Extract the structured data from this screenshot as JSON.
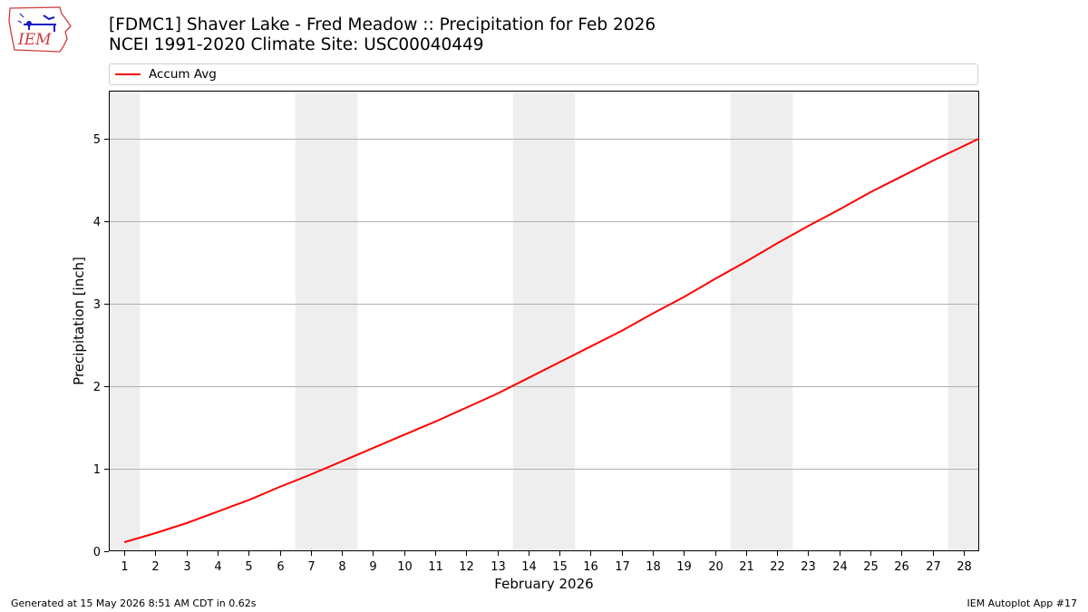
{
  "header": {
    "title_line1": "[FDMC1] Shaver Lake - Fred Meadow :: Precipitation for Feb 2026",
    "title_line2": "NCEI 1991-2020 Climate Site: USC00040449"
  },
  "logo": {
    "text": "IEM",
    "icon": "iem-iowa-logo"
  },
  "footer": {
    "generated": "Generated at 15 May 2026 8:51 AM CDT in 0.62s",
    "app": "IEM Autoplot App #17"
  },
  "colors": {
    "series": "#ff0000",
    "weekend_band": "#eeeeee",
    "grid": "#b0b0b0"
  },
  "chart_data": {
    "type": "line",
    "xlabel": "February 2026",
    "ylabel": "Precipitation [inch]",
    "xlim": [
      0.5,
      28.5
    ],
    "ylim": [
      0,
      5.58
    ],
    "x_ticks": [
      1,
      2,
      3,
      4,
      5,
      6,
      7,
      8,
      9,
      10,
      11,
      12,
      13,
      14,
      15,
      16,
      17,
      18,
      19,
      20,
      21,
      22,
      23,
      24,
      25,
      26,
      27,
      28
    ],
    "y_ticks": [
      0,
      1,
      2,
      3,
      4,
      5
    ],
    "grid": "horizontal",
    "legend_position": "top",
    "weekend_shading": [
      [
        0.5,
        1.5
      ],
      [
        6.5,
        8.5
      ],
      [
        13.5,
        15.5
      ],
      [
        20.5,
        22.5
      ],
      [
        27.5,
        28.5
      ]
    ],
    "series": [
      {
        "name": "Accum Avg",
        "color": "#ff0000",
        "x": [
          1,
          2,
          3,
          4,
          5,
          6,
          7,
          8,
          9,
          10,
          11,
          12,
          13,
          14,
          15,
          16,
          17,
          18,
          19,
          20,
          21,
          22,
          23,
          24,
          25,
          26,
          27,
          28,
          28.5
        ],
        "values": [
          0.11,
          0.22,
          0.34,
          0.48,
          0.62,
          0.78,
          0.93,
          1.09,
          1.25,
          1.41,
          1.57,
          1.74,
          1.91,
          2.1,
          2.29,
          2.48,
          2.67,
          2.88,
          3.08,
          3.3,
          3.51,
          3.73,
          3.94,
          4.14,
          4.35,
          4.54,
          4.73,
          4.91,
          5.0
        ]
      }
    ]
  }
}
